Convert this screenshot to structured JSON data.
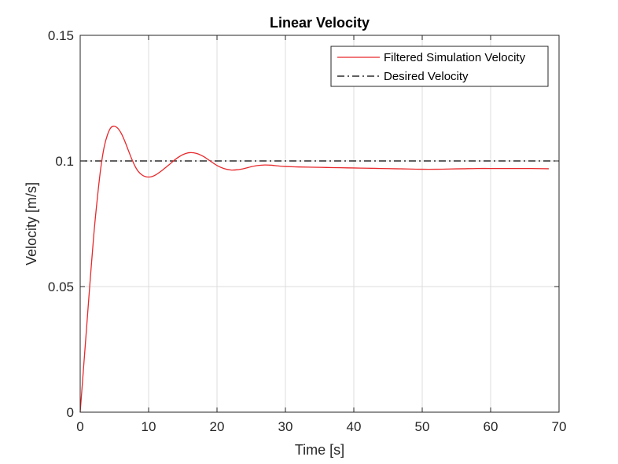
{
  "chart_data": {
    "type": "line",
    "title": "Linear Velocity",
    "xlabel": "Time [s]",
    "ylabel": "Velocity [m/s]",
    "xlim": [
      0,
      70
    ],
    "ylim": [
      0,
      0.15
    ],
    "xticks": [
      0,
      10,
      20,
      30,
      40,
      50,
      60,
      70
    ],
    "yticks": [
      0,
      0.05,
      0.1,
      0.15
    ],
    "xtick_labels": [
      "0",
      "10",
      "20",
      "30",
      "40",
      "50",
      "60",
      "70"
    ],
    "ytick_labels": [
      "0",
      "0.05",
      "0.1",
      "0.15"
    ],
    "grid": true,
    "legend_position": "top-right",
    "series": [
      {
        "name": "Filtered Simulation Velocity",
        "color": "#e8282b",
        "style": "solid",
        "x": [
          0,
          0.5,
          1,
          1.5,
          2,
          2.5,
          3,
          3.5,
          4,
          4.5,
          5,
          5.5,
          6,
          6.5,
          7,
          7.5,
          8,
          8.5,
          9,
          9.5,
          10,
          10.5,
          11,
          11.5,
          12,
          13,
          14,
          15,
          16,
          17,
          18,
          19,
          20,
          21,
          22,
          23,
          24,
          25,
          26,
          27,
          28,
          29,
          30,
          32,
          34,
          36,
          38,
          40,
          42,
          44,
          46,
          48,
          50,
          52,
          54,
          56,
          58,
          60,
          62,
          64,
          66,
          68.5
        ],
        "y": [
          0,
          0.018,
          0.036,
          0.054,
          0.071,
          0.085,
          0.097,
          0.1055,
          0.1105,
          0.1133,
          0.1138,
          0.113,
          0.111,
          0.108,
          0.1045,
          0.101,
          0.098,
          0.0958,
          0.0945,
          0.0938,
          0.0936,
          0.0938,
          0.0944,
          0.0953,
          0.0963,
          0.0985,
          0.1008,
          0.1025,
          0.1033,
          0.103,
          0.1018,
          0.1,
          0.0982,
          0.097,
          0.0964,
          0.0965,
          0.097,
          0.0977,
          0.0982,
          0.0984,
          0.0983,
          0.098,
          0.0978,
          0.0976,
          0.0975,
          0.0974,
          0.0973,
          0.0972,
          0.0971,
          0.097,
          0.0969,
          0.0968,
          0.0967,
          0.0967,
          0.0968,
          0.0969,
          0.097,
          0.097,
          0.097,
          0.097,
          0.097,
          0.0969
        ]
      },
      {
        "name": "Desired Velocity",
        "color": "#000000",
        "style": "dash-dot",
        "x": [
          0,
          70
        ],
        "y": [
          0.1,
          0.1
        ]
      }
    ]
  }
}
